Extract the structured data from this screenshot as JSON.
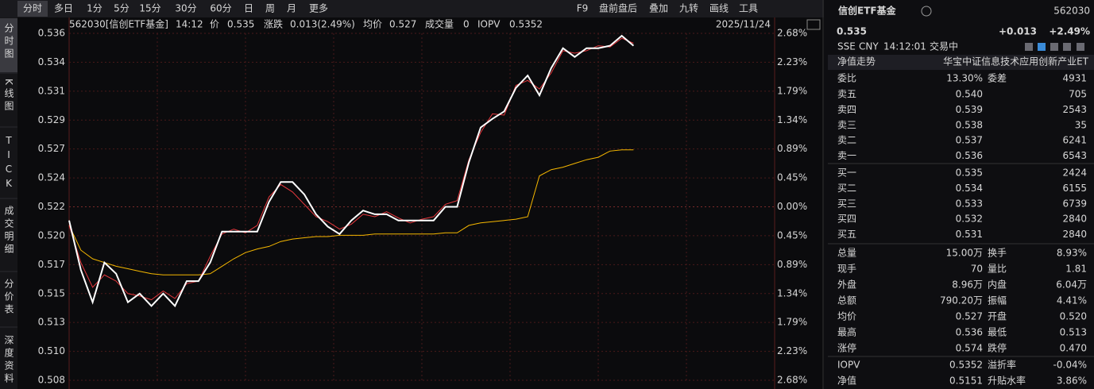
{
  "toolbar": {
    "tabs": [
      "分时",
      "多日",
      "1分",
      "5分",
      "15分",
      "30分",
      "60分",
      "日",
      "周",
      "月",
      "更多"
    ],
    "tools": [
      "F9",
      "盘前盘后",
      "叠加",
      "九转",
      "画线",
      "工具"
    ]
  },
  "side_tabs": [
    "分时图",
    "K线图",
    "TICK",
    "成交明细",
    "分价表",
    "深度资料"
  ],
  "info_bar": {
    "code_name": "562030[信创ETF基金]",
    "time": "14:12",
    "price": "0.535",
    "change_label": "涨跌",
    "change": "0.013(2.49%)",
    "avg": "0.527",
    "volume_label": "成交量",
    "volume": "0",
    "iopv": "0.5352",
    "date": "2025/11/24"
  },
  "chart_data": {
    "type": "line",
    "categories": [
      null,
      null,
      null,
      null,
      null,
      null,
      null,
      null,
      null,
      null,
      null,
      null,
      null,
      null,
      null,
      null,
      null,
      null,
      null,
      null,
      null,
      null,
      null,
      null,
      null,
      null,
      null,
      null,
      null,
      null,
      null,
      null,
      null,
      null,
      null,
      null,
      null,
      null,
      null,
      null,
      null,
      null,
      null,
      null,
      null,
      null,
      null,
      null,
      null,
      null,
      null,
      null,
      null,
      null,
      null,
      null,
      null,
      null,
      null,
      null,
      null
    ],
    "series": [
      {
        "name": "价",
        "color": "#ffffff",
        "values": [
          0.5209,
          0.5169,
          0.5143,
          0.5175,
          0.5166,
          0.5143,
          0.515,
          0.514,
          0.515,
          0.514,
          0.516,
          0.516,
          0.5175,
          0.52,
          0.52,
          0.52,
          0.52,
          0.5224,
          0.524,
          0.524,
          0.523,
          0.5214,
          0.5204,
          0.5198,
          0.5209,
          0.5217,
          0.5214,
          0.5214,
          0.5209,
          0.5209,
          0.5209,
          0.5209,
          0.522,
          0.522,
          0.5256,
          0.5284,
          0.5291,
          0.5297,
          0.5316,
          0.5326,
          0.531,
          0.5332,
          0.5348,
          0.5341,
          0.5348,
          0.5348,
          0.535,
          0.5358,
          0.535,
          null,
          null,
          null,
          null,
          null,
          null,
          null,
          null,
          null,
          null,
          null,
          null
        ]
      },
      {
        "name": "均价",
        "color": "#f5b700",
        "values": [
          0.5205,
          0.5185,
          0.5178,
          0.5175,
          0.5172,
          0.517,
          0.5168,
          0.5166,
          0.5165,
          0.5165,
          0.5165,
          0.5165,
          0.5166,
          0.5172,
          0.5178,
          0.5183,
          0.5186,
          0.5188,
          0.5192,
          0.5194,
          0.5195,
          0.5196,
          0.5196,
          0.5197,
          0.5197,
          0.5197,
          0.5198,
          0.5198,
          0.5198,
          0.5198,
          0.5198,
          0.5198,
          0.5199,
          0.5199,
          0.5205,
          0.5207,
          0.5208,
          0.5209,
          0.521,
          0.5212,
          0.5245,
          0.525,
          0.5252,
          0.5255,
          0.5258,
          0.526,
          0.5265,
          0.5266,
          0.5266,
          null,
          null,
          null,
          null,
          null,
          null,
          null,
          null,
          null,
          null,
          null,
          null
        ]
      },
      {
        "name": "IOPV",
        "color": "#e8383d",
        "values": [
          0.5205,
          0.5175,
          0.5155,
          0.5165,
          0.516,
          0.515,
          0.5148,
          0.5145,
          0.5152,
          0.5146,
          0.5158,
          0.516,
          0.518,
          0.5198,
          0.5202,
          0.5199,
          0.5205,
          0.5228,
          0.5238,
          0.5232,
          0.5222,
          0.5212,
          0.5208,
          0.5202,
          0.5206,
          0.5214,
          0.5212,
          0.5216,
          0.5211,
          0.5207,
          0.521,
          0.5212,
          0.5222,
          0.5225,
          0.5258,
          0.528,
          0.5295,
          0.5294,
          0.5318,
          0.5322,
          0.5315,
          0.5328,
          0.5346,
          0.5344,
          0.5346,
          0.535,
          0.5349,
          0.5356,
          0.5352,
          null,
          null,
          null,
          null,
          null,
          null,
          null,
          null,
          null,
          null,
          null,
          null
        ]
      }
    ],
    "ylim": [
      0.508,
      0.536
    ],
    "yticks": [
      0.536,
      {
        "value": 0.533667,
        "label": "0.534"
      },
      {
        "value": 0.531333,
        "label": "0.531"
      },
      0.529,
      {
        "value": 0.526667,
        "label": "0.527"
      },
      {
        "value": 0.524333,
        "label": "0.524"
      },
      0.522,
      {
        "value": 0.519667,
        "label": "0.520"
      },
      {
        "value": 0.517333,
        "label": "0.517"
      },
      0.515,
      {
        "value": 0.512667,
        "label": "0.513"
      },
      {
        "value": 0.510333,
        "label": "0.510"
      },
      0.508
    ],
    "y2lim": [
      -2.68,
      2.68
    ],
    "y2ticks": [
      {
        "value": 2.68,
        "label": "2.68%"
      },
      {
        "value": 2.2333,
        "label": "2.23%"
      },
      {
        "value": 1.7867,
        "label": "1.79%"
      },
      {
        "value": 1.34,
        "label": "1.34%"
      },
      {
        "value": 0.8933,
        "label": "0.89%"
      },
      {
        "value": 0.4467,
        "label": "0.45%"
      },
      {
        "value": 0,
        "label": "0.00%"
      },
      {
        "value": -0.4467,
        "label": "0.45%"
      },
      {
        "value": -0.8933,
        "label": "0.89%"
      },
      {
        "value": -1.34,
        "label": "1.34%"
      },
      {
        "value": -1.7867,
        "label": "1.79%"
      },
      {
        "value": -2.2333,
        "label": "2.23%"
      },
      {
        "value": -2.68,
        "label": "2.68%"
      }
    ],
    "grid": true
  },
  "quote": {
    "name": "信创ETF基金",
    "code": "562030",
    "price": "0.535",
    "change": "+0.013",
    "change_pct": "+2.49%",
    "exchange": "SSE",
    "currency": "CNY",
    "time": "14:12:01",
    "status": "交易中",
    "nav_trend": "净值走势",
    "fund_full_name": "华宝中证信息技术应用创新产业ET",
    "ratio_label": "委比",
    "ratio": "13.30%",
    "diff_label": "委差",
    "diff": "4931",
    "book": [
      {
        "label": "卖五",
        "price": "0.540",
        "volume": "705"
      },
      {
        "label": "卖四",
        "price": "0.539",
        "volume": "2543"
      },
      {
        "label": "卖三",
        "price": "0.538",
        "volume": "35"
      },
      {
        "label": "卖二",
        "price": "0.537",
        "volume": "6241"
      },
      {
        "label": "卖一",
        "price": "0.536",
        "volume": "6543"
      },
      {
        "label": "买一",
        "price": "0.535",
        "volume": "2424"
      },
      {
        "label": "买二",
        "price": "0.534",
        "volume": "6155"
      },
      {
        "label": "买三",
        "price": "0.533",
        "volume": "6739"
      },
      {
        "label": "买四",
        "price": "0.532",
        "volume": "2840"
      },
      {
        "label": "买五",
        "price": "0.531",
        "volume": "2840"
      }
    ],
    "stats": [
      {
        "label": "总量",
        "value": "15.00万",
        "color": "#e6e6e6",
        "label2": "换手",
        "value2": "8.93%",
        "color2": "#e6e6e6"
      },
      {
        "label": "现手",
        "value": "70",
        "color": "#e6e6e6",
        "label2": "量比",
        "value2": "1.81",
        "color2": "#e6e6e6"
      },
      {
        "label": "外盘",
        "value": "8.96万",
        "color": "#f23d3d",
        "label2": "内盘",
        "value2": "6.04万",
        "color2": "#2fc25b"
      },
      {
        "label": "总额",
        "value": "790.20万",
        "color": "#e6e6e6",
        "label2": "振幅",
        "value2": "4.41%",
        "color2": "#e6e6e6"
      },
      {
        "label": "均价",
        "value": "0.527",
        "color": "#f23d3d",
        "label2": "开盘",
        "value2": "0.520",
        "color2": "#2fc25b"
      },
      {
        "label": "最高",
        "value": "0.536",
        "color": "#f23d3d",
        "label2": "最低",
        "value2": "0.513",
        "color2": "#2fc25b"
      },
      {
        "label": "涨停",
        "value": "0.574",
        "color": "#f23d3d",
        "label2": "跌停",
        "value2": "0.470",
        "color2": "#2fc25b"
      },
      {
        "label": "IOPV",
        "value": "0.5352",
        "color": "#e6e6e6",
        "label2": "溢折率",
        "value2": "-0.04%",
        "color2": "#2fc25b"
      },
      {
        "label": "净值",
        "value": "0.5151",
        "color": "#e6e6e6",
        "label2": "升贴水率",
        "value2": "3.86%",
        "color2": "#f23d3d"
      }
    ]
  }
}
